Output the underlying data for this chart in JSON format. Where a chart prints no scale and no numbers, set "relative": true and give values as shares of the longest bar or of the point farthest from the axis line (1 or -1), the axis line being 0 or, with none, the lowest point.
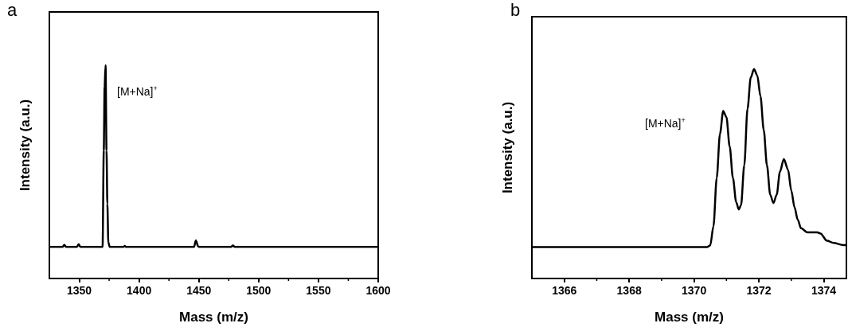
{
  "chart_data": [
    {
      "type": "line",
      "title": "a",
      "xlabel": "Mass (m/z)",
      "ylabel": "Intensity (a.u.)",
      "relative": true,
      "xlim": [
        1325,
        1600
      ],
      "xticks": [
        1350,
        1400,
        1450,
        1500,
        1550,
        1600
      ],
      "grid": false,
      "marker": "none",
      "line_style": "solid",
      "annotations": [
        "[M+Na]$^{+}$"
      ],
      "series": [
        {
          "color": "#000000",
          "x": [
            1325,
            1336,
            1337.5,
            1339,
            1348,
            1349.5,
            1351,
            1369.5,
            1370.5,
            1371.2,
            1372,
            1372.8,
            1373.5,
            1374.3,
            1375.5,
            1387,
            1388,
            1389,
            1446,
            1447.5,
            1449.5,
            1450.5,
            1477,
            1478.5,
            1480,
            1600
          ],
          "values": [
            0.148,
            0.148,
            0.158,
            0.148,
            0.148,
            0.16,
            0.148,
            0.148,
            0.6,
            0.9,
            1,
            0.6,
            0.35,
            0.17,
            0.148,
            0.148,
            0.153,
            0.148,
            0.148,
            0.178,
            0.15,
            0.148,
            0.148,
            0.155,
            0.148,
            0.148
          ]
        }
      ]
    },
    {
      "type": "line",
      "title": "b",
      "xlabel": "Mass (m/z)",
      "ylabel": "Intensity (a.u.)",
      "relative": true,
      "xlim": [
        1365,
        1374.7
      ],
      "xticks": [
        1366,
        1368,
        1370,
        1372,
        1374
      ],
      "grid": false,
      "marker": "none",
      "line_style": "solid",
      "annotations": [
        "[M+Na]$^{+}$"
      ],
      "series": [
        {
          "color": "#000000",
          "x": [
            1365,
            1370.4,
            1370.5,
            1370.6,
            1370.7,
            1370.8,
            1370.9,
            1371,
            1371.1,
            1371.2,
            1371.3,
            1371.38,
            1371.45,
            1371.55,
            1371.65,
            1371.75,
            1371.85,
            1371.95,
            1372.05,
            1372.15,
            1372.25,
            1372.35,
            1372.45,
            1372.55,
            1372.65,
            1372.77,
            1372.9,
            1373,
            1373.1,
            1373.2,
            1373.3,
            1373.5,
            1373.8,
            1373.9,
            1374.1,
            1374.3,
            1374.6,
            1374.7
          ],
          "values": [
            0.15,
            0.15,
            0.158,
            0.25,
            0.48,
            0.69,
            0.8,
            0.77,
            0.63,
            0.48,
            0.365,
            0.33,
            0.35,
            0.54,
            0.81,
            0.96,
            1,
            0.97,
            0.87,
            0.71,
            0.54,
            0.4,
            0.36,
            0.4,
            0.51,
            0.57,
            0.52,
            0.42,
            0.34,
            0.28,
            0.24,
            0.22,
            0.22,
            0.215,
            0.18,
            0.17,
            0.16,
            0.16
          ]
        }
      ]
    }
  ]
}
